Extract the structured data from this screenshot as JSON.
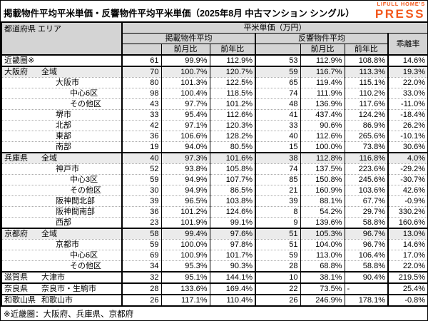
{
  "logo": {
    "line1": "LIFULL HOME'S",
    "line2": "PRESS"
  },
  "colors": {
    "logo_orange": "#f3581d",
    "header_bg": "#d4d4d4",
    "shaded_row_bg": "#ebebeb"
  },
  "chart_data": {
    "type": "table",
    "title": "掲載物件平均平米単価・反響物件平均平米単価（2025年8月 中古マンション シングル）",
    "footnote": "※近畿圏：大阪府、兵庫県、京都府",
    "header": {
      "area": "都道府県 エリア",
      "unit_group": "平米単価（万円）",
      "listed_group": "掲載物件平均",
      "response_group": "反響物件平均",
      "mom": "前月比",
      "yoy": "前年比",
      "deviation": "乖離率"
    },
    "rows": [
      {
        "pref": "近畿圏※",
        "area": "",
        "indent": 1,
        "listed": "61",
        "listed_mom": "99.9%",
        "listed_yoy": "112.9%",
        "resp": "53",
        "resp_mom": "112.9%",
        "resp_yoy": "108.8%",
        "dev": "14.6%",
        "shaded": false,
        "section": true
      },
      {
        "pref": "大阪府",
        "area": "全域",
        "indent": 1,
        "listed": "70",
        "listed_mom": "100.7%",
        "listed_yoy": "120.7%",
        "resp": "59",
        "resp_mom": "116.7%",
        "resp_yoy": "113.3%",
        "dev": "19.3%",
        "shaded": true,
        "section": true
      },
      {
        "pref": "",
        "area": "大阪市",
        "indent": 2,
        "listed": "80",
        "listed_mom": "101.3%",
        "listed_yoy": "122.5%",
        "resp": "65",
        "resp_mom": "119.4%",
        "resp_yoy": "115.1%",
        "dev": "22.0%",
        "shaded": false,
        "section": false
      },
      {
        "pref": "",
        "area": "中心6区",
        "indent": 3,
        "listed": "98",
        "listed_mom": "100.4%",
        "listed_yoy": "118.5%",
        "resp": "74",
        "resp_mom": "111.9%",
        "resp_yoy": "110.2%",
        "dev": "33.0%",
        "shaded": false,
        "section": false
      },
      {
        "pref": "",
        "area": "その他区",
        "indent": 3,
        "listed": "43",
        "listed_mom": "97.7%",
        "listed_yoy": "101.2%",
        "resp": "48",
        "resp_mom": "136.9%",
        "resp_yoy": "117.6%",
        "dev": "-11.0%",
        "shaded": false,
        "section": false
      },
      {
        "pref": "",
        "area": "堺市",
        "indent": 2,
        "listed": "33",
        "listed_mom": "95.4%",
        "listed_yoy": "112.6%",
        "resp": "41",
        "resp_mom": "437.4%",
        "resp_yoy": "124.2%",
        "dev": "-18.4%",
        "shaded": false,
        "section": false
      },
      {
        "pref": "",
        "area": "北部",
        "indent": 2,
        "listed": "42",
        "listed_mom": "97.1%",
        "listed_yoy": "120.3%",
        "resp": "33",
        "resp_mom": "90.6%",
        "resp_yoy": "86.9%",
        "dev": "26.2%",
        "shaded": false,
        "section": false
      },
      {
        "pref": "",
        "area": "東部",
        "indent": 2,
        "listed": "36",
        "listed_mom": "106.6%",
        "listed_yoy": "128.2%",
        "resp": "40",
        "resp_mom": "112.6%",
        "resp_yoy": "265.6%",
        "dev": "-10.1%",
        "shaded": false,
        "section": false
      },
      {
        "pref": "",
        "area": "南部",
        "indent": 2,
        "listed": "19",
        "listed_mom": "94.0%",
        "listed_yoy": "80.5%",
        "resp": "15",
        "resp_mom": "100.0%",
        "resp_yoy": "73.8%",
        "dev": "30.6%",
        "shaded": false,
        "section": false
      },
      {
        "pref": "兵庫県",
        "area": "全域",
        "indent": 1,
        "listed": "40",
        "listed_mom": "97.3%",
        "listed_yoy": "101.6%",
        "resp": "38",
        "resp_mom": "112.8%",
        "resp_yoy": "116.8%",
        "dev": "4.0%",
        "shaded": true,
        "section": true
      },
      {
        "pref": "",
        "area": "神戸市",
        "indent": 2,
        "listed": "52",
        "listed_mom": "93.8%",
        "listed_yoy": "105.8%",
        "resp": "74",
        "resp_mom": "137.5%",
        "resp_yoy": "223.6%",
        "dev": "-29.2%",
        "shaded": false,
        "section": false
      },
      {
        "pref": "",
        "area": "中心3区",
        "indent": 3,
        "listed": "59",
        "listed_mom": "94.9%",
        "listed_yoy": "107.7%",
        "resp": "85",
        "resp_mom": "150.8%",
        "resp_yoy": "245.6%",
        "dev": "-30.7%",
        "shaded": false,
        "section": false
      },
      {
        "pref": "",
        "area": "その他区",
        "indent": 3,
        "listed": "30",
        "listed_mom": "94.9%",
        "listed_yoy": "86.5%",
        "resp": "21",
        "resp_mom": "160.9%",
        "resp_yoy": "103.6%",
        "dev": "42.6%",
        "shaded": false,
        "section": false
      },
      {
        "pref": "",
        "area": "阪神間北部",
        "indent": 2,
        "listed": "39",
        "listed_mom": "96.5%",
        "listed_yoy": "103.8%",
        "resp": "39",
        "resp_mom": "88.1%",
        "resp_yoy": "67.7%",
        "dev": "-0.9%",
        "shaded": false,
        "section": false
      },
      {
        "pref": "",
        "area": "阪神間南部",
        "indent": 2,
        "listed": "36",
        "listed_mom": "101.2%",
        "listed_yoy": "124.6%",
        "resp": "8",
        "resp_mom": "54.2%",
        "resp_yoy": "29.7%",
        "dev": "330.2%",
        "shaded": false,
        "section": false
      },
      {
        "pref": "",
        "area": "西部",
        "indent": 2,
        "listed": "23",
        "listed_mom": "101.9%",
        "listed_yoy": "99.1%",
        "resp": "9",
        "resp_mom": "139.6%",
        "resp_yoy": "58.8%",
        "dev": "160.6%",
        "shaded": false,
        "section": false
      },
      {
        "pref": "京都府",
        "area": "全域",
        "indent": 1,
        "listed": "58",
        "listed_mom": "99.4%",
        "listed_yoy": "97.6%",
        "resp": "51",
        "resp_mom": "105.3%",
        "resp_yoy": "96.7%",
        "dev": "13.0%",
        "shaded": true,
        "section": true
      },
      {
        "pref": "",
        "area": "京都市",
        "indent": 2,
        "listed": "59",
        "listed_mom": "100.0%",
        "listed_yoy": "97.8%",
        "resp": "51",
        "resp_mom": "104.0%",
        "resp_yoy": "96.7%",
        "dev": "14.6%",
        "shaded": false,
        "section": false
      },
      {
        "pref": "",
        "area": "中心6区",
        "indent": 3,
        "listed": "69",
        "listed_mom": "100.9%",
        "listed_yoy": "101.7%",
        "resp": "59",
        "resp_mom": "113.0%",
        "resp_yoy": "106.4%",
        "dev": "17.0%",
        "shaded": false,
        "section": false
      },
      {
        "pref": "",
        "area": "その他区",
        "indent": 3,
        "listed": "34",
        "listed_mom": "95.3%",
        "listed_yoy": "90.3%",
        "resp": "28",
        "resp_mom": "68.8%",
        "resp_yoy": "58.8%",
        "dev": "22.0%",
        "shaded": false,
        "section": false
      },
      {
        "pref": "滋賀県",
        "area": "大津市",
        "indent": 1,
        "listed": "32",
        "listed_mom": "95.1%",
        "listed_yoy": "144.1%",
        "resp": "10",
        "resp_mom": "38.1%",
        "resp_yoy": "90.4%",
        "dev": "219.5%",
        "shaded": false,
        "section": true
      },
      {
        "pref": "奈良県",
        "area": "奈良市・生駒市",
        "indent": 1,
        "listed": "28",
        "listed_mom": "133.6%",
        "listed_yoy": "169.4%",
        "resp": "22",
        "resp_mom": "73.5%",
        "resp_yoy": "-",
        "dev": "25.4%",
        "shaded": false,
        "section": true
      },
      {
        "pref": "和歌山県",
        "area": "和歌山市",
        "indent": 1,
        "listed": "26",
        "listed_mom": "117.1%",
        "listed_yoy": "110.4%",
        "resp": "26",
        "resp_mom": "246.9%",
        "resp_yoy": "178.1%",
        "dev": "-0.8%",
        "shaded": false,
        "section": true
      }
    ]
  }
}
